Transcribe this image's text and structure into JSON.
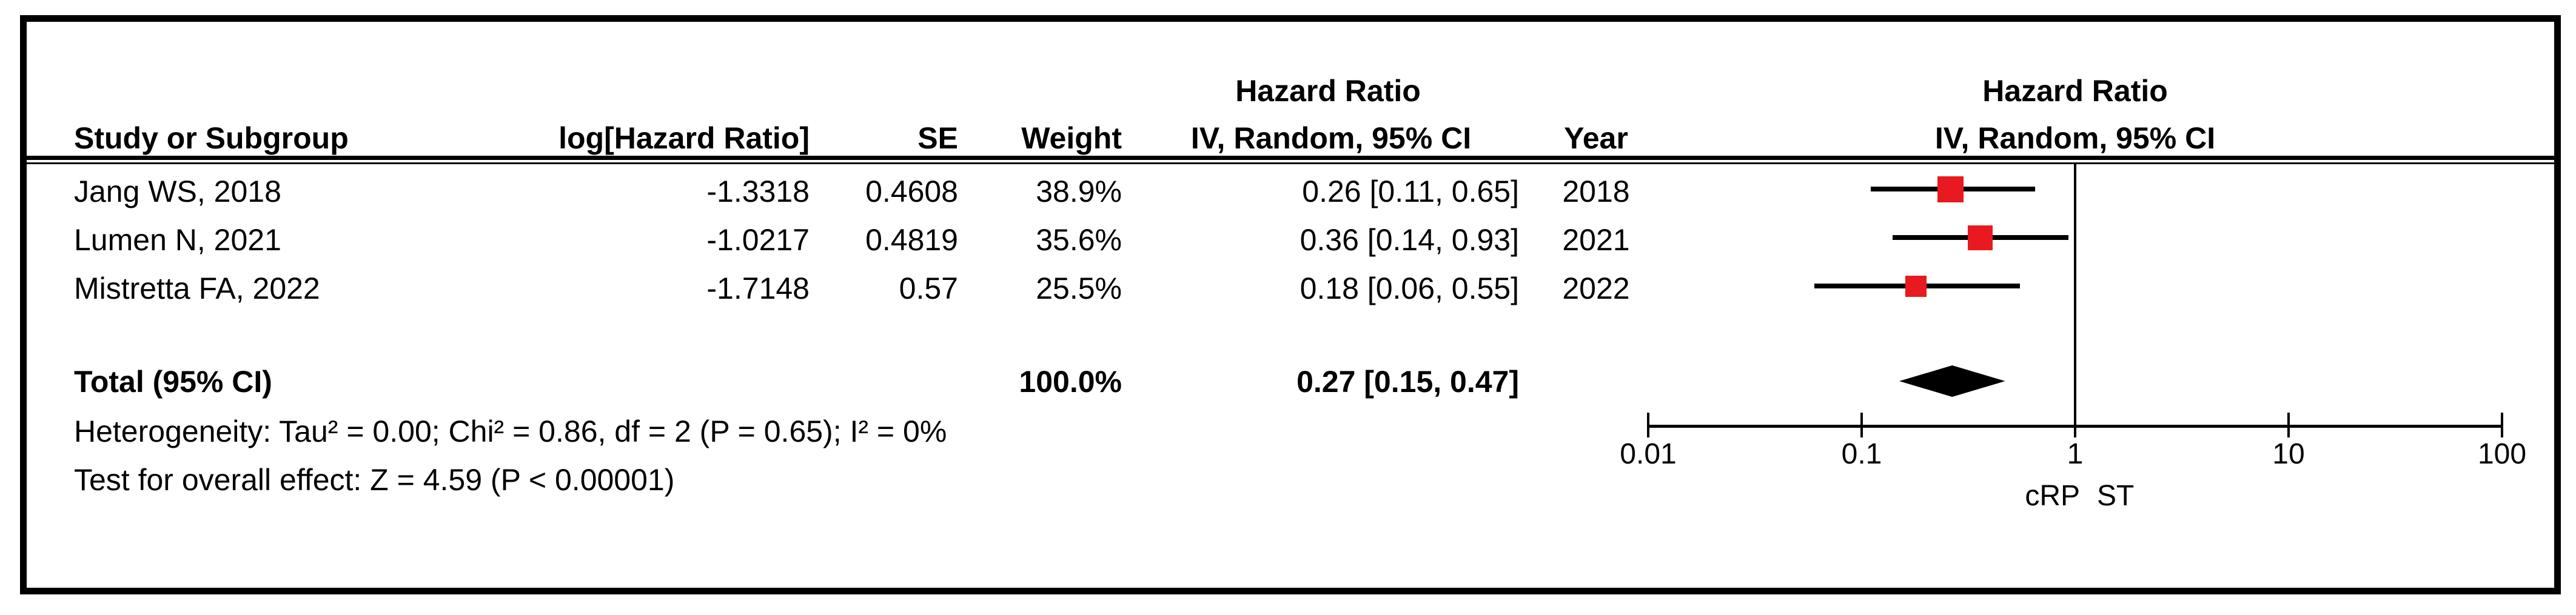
{
  "figure": {
    "type_label": "forest plot",
    "background": "#ffffff",
    "border_color": "#000000"
  },
  "table": {
    "headers": {
      "study": "Study or Subgroup",
      "log_hr": "log[Hazard Ratio]",
      "se": "SE",
      "weight": "Weight",
      "hr_group_line1": "Hazard Ratio",
      "hr_group_line2": "IV, Random, 95% CI",
      "year": "Year",
      "plot_line1": "Hazard Ratio",
      "plot_line2": "IV, Random, 95% CI"
    },
    "rows": [
      {
        "study": "Jang WS, 2018",
        "log_hr": "-1.3318",
        "se": "0.4608",
        "weight": "38.9%",
        "ci_text": "0.26 [0.11, 0.65]",
        "year": "2018"
      },
      {
        "study": "Lumen N, 2021",
        "log_hr": "-1.0217",
        "se": "0.4819",
        "weight": "35.6%",
        "ci_text": "0.36 [0.14, 0.93]",
        "year": "2021"
      },
      {
        "study": "Mistretta FA, 2022",
        "log_hr": "-1.7148",
        "se": "0.57",
        "weight": "25.5%",
        "ci_text": "0.18 [0.06, 0.55]",
        "year": "2022"
      }
    ],
    "total": {
      "label": "Total (95% CI)",
      "weight": "100.0%",
      "ci_text": "0.27 [0.15, 0.47]"
    },
    "heterogeneity": "Heterogeneity: Tau² = 0.00; Chi² = 0.86, df = 2 (P = 0.65); I² = 0%",
    "overall_effect": "Test for overall effect: Z = 4.59 (P < 0.00001)"
  },
  "plot": {
    "favours_left": "cRP",
    "favours_right": "ST",
    "marker_color": "#e8191f",
    "line_color": "#000000"
  },
  "chart_data": {
    "type": "scatter",
    "subtype": "forest-plot",
    "x_scale": "log10",
    "x_ticks": [
      "0.01",
      "0.1",
      "1",
      "10",
      "100"
    ],
    "x_range": [
      0.01,
      100
    ],
    "reference_line_x": 1,
    "studies": [
      {
        "name": "Jang WS, 2018",
        "hr": 0.26,
        "ci": [
          0.11,
          0.65
        ],
        "weight_pct": 38.9,
        "year": 2018
      },
      {
        "name": "Lumen N, 2021",
        "hr": 0.36,
        "ci": [
          0.14,
          0.93
        ],
        "weight_pct": 35.6,
        "year": 2021
      },
      {
        "name": "Mistretta FA, 2022",
        "hr": 0.18,
        "ci": [
          0.06,
          0.55
        ],
        "weight_pct": 25.5,
        "year": 2022
      }
    ],
    "overall": {
      "hr": 0.27,
      "ci": [
        0.15,
        0.47
      ],
      "weight_pct": 100.0
    },
    "effect_measure": "Hazard Ratio, IV, Random, 95% CI",
    "heterogeneity": {
      "tau2": 0.0,
      "chi2": 0.86,
      "df": 2,
      "p": 0.65,
      "i2_pct": 0
    },
    "overall_effect_test": {
      "z": 4.59,
      "p": "< 0.00001"
    },
    "axis_label_left": "cRP",
    "axis_label_right": "ST",
    "marker_color": "#e8191f"
  }
}
